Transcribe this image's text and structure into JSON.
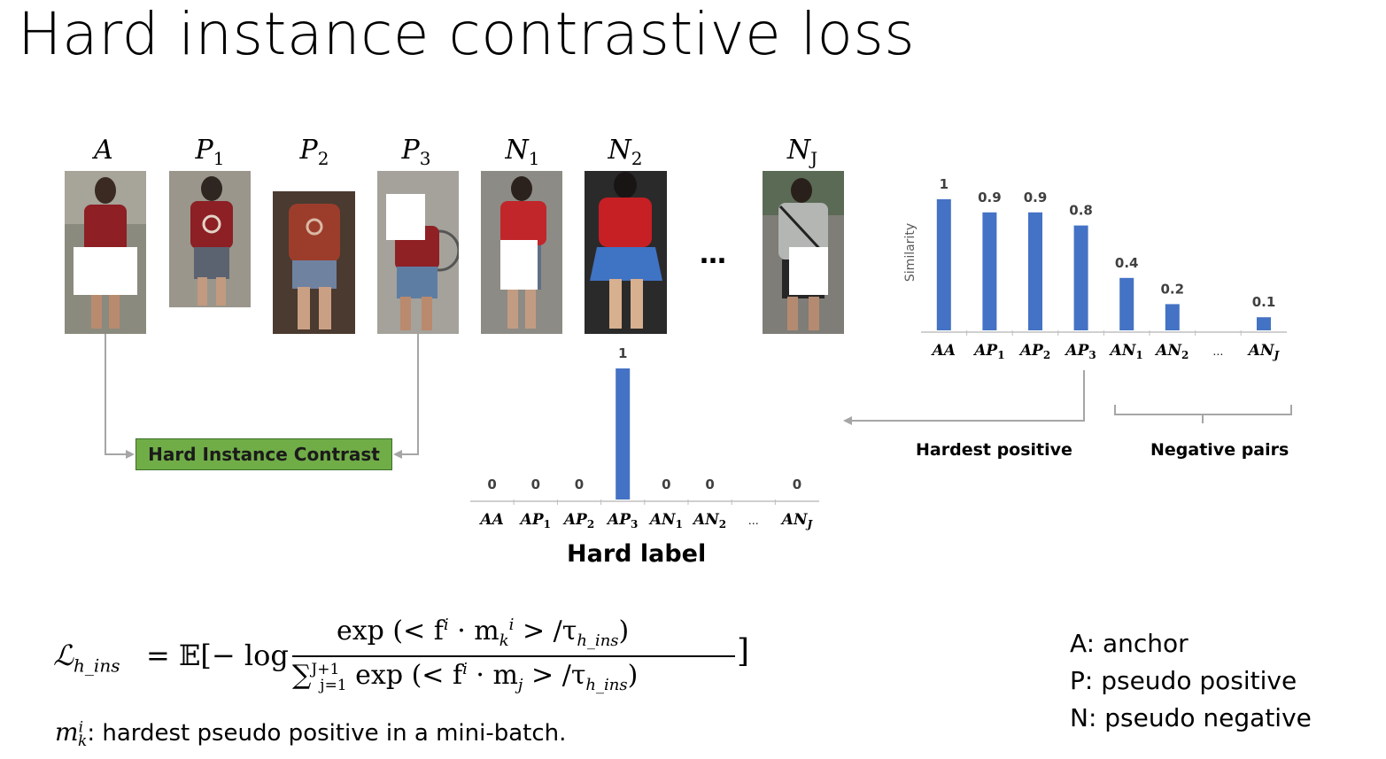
{
  "slide": {
    "title": "Hard instance contrastive loss"
  },
  "images": [
    {
      "label": "A",
      "sub": "",
      "masked": true
    },
    {
      "label": "P",
      "sub": "1",
      "masked": false
    },
    {
      "label": "P",
      "sub": "2",
      "masked": false
    },
    {
      "label": "P",
      "sub": "3",
      "masked": true
    },
    {
      "label": "N",
      "sub": "1",
      "masked": true
    },
    {
      "label": "N",
      "sub": "2",
      "masked": false
    },
    {
      "label": "N",
      "sub": "J",
      "masked": true
    }
  ],
  "ellipsis": "…",
  "hic_box": {
    "label": "Hard Instance Contrast",
    "color": "#70ad47"
  },
  "captions": {
    "hardest_positive": "Hardest positive",
    "negative_pairs": "Negative pairs",
    "hard_label": "Hard label"
  },
  "chart_data": [
    {
      "type": "bar",
      "ylabel": "Similarity",
      "categories": [
        "AA",
        "AP1",
        "AP2",
        "AP3",
        "AN1",
        "AN2",
        "…",
        "ANJ"
      ],
      "values": [
        1,
        0.9,
        0.9,
        0.8,
        0.4,
        0.2,
        null,
        0.1
      ],
      "data_labels": [
        "1",
        "0.9",
        "0.9",
        "0.8",
        "0.4",
        "0.2",
        "",
        "0.1"
      ],
      "color": "#4472c4",
      "ylim": [
        0,
        1
      ]
    },
    {
      "type": "bar",
      "title": "Hard label",
      "categories": [
        "AA",
        "AP1",
        "AP2",
        "AP3",
        "AN1",
        "AN2",
        "…",
        "ANJ"
      ],
      "values": [
        0,
        0,
        0,
        1,
        0,
        0,
        null,
        0
      ],
      "data_labels": [
        "0",
        "0",
        "0",
        "1",
        "0",
        "0",
        "",
        "0"
      ],
      "color": "#4472c4",
      "ylim": [
        0,
        1
      ]
    }
  ],
  "formula": {
    "lhs": "ℒ",
    "lhs_sub": "h_ins",
    "equals": "= 𝔼[− log",
    "numerator": "exp (< f",
    "num_sup": "i",
    "num_mid": " · m",
    "num_m_sub": "k",
    "num_m_sup": "i",
    "num_end": " > /τ",
    "tau_sub": "h_ins",
    "num_close": ")",
    "den_sum": "∑",
    "den_sum_sup": "J+1",
    "den_sum_sub": "j=1",
    "den_text": " exp (< f",
    "den_sup": "i",
    "den_mid": " · m",
    "den_m_sub": "j",
    "den_end": " > /τ",
    "den_close": ")",
    "close_bracket": "]"
  },
  "footnote": {
    "symbol": "m",
    "sup": "i",
    "sub": "k",
    "text": ": hardest pseudo positive in a mini-batch."
  },
  "legend": [
    "A: anchor",
    "P: pseudo positive",
    "N: pseudo negative"
  ]
}
